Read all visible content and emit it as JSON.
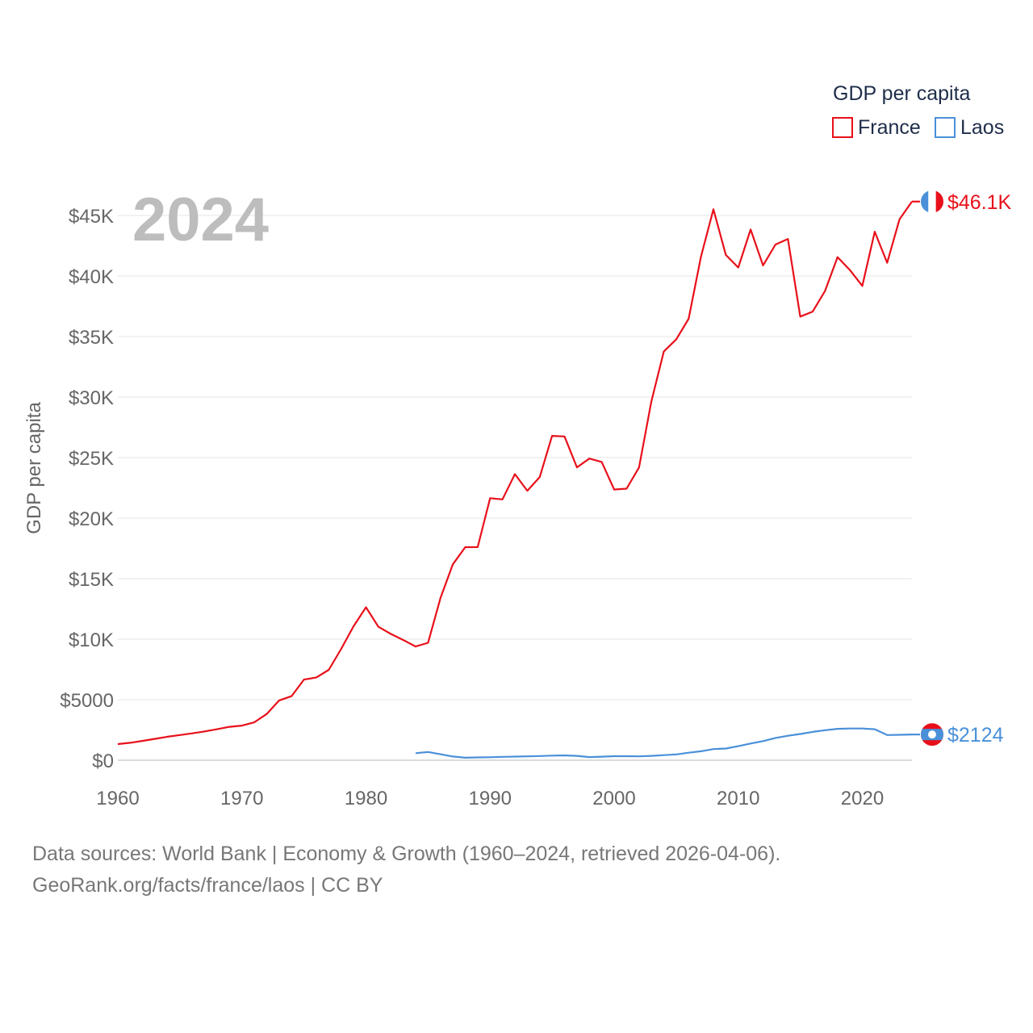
{
  "chart_data": {
    "type": "line",
    "title": "GDP per capita",
    "year_label": "2024",
    "ylabel": "GDP per capita",
    "xlabel": "",
    "xlim": [
      1960,
      2024
    ],
    "ylim": [
      0,
      45000
    ],
    "x_ticks": [
      1960,
      1970,
      1980,
      1990,
      2000,
      2010,
      2020
    ],
    "x_tick_labels": [
      "1960",
      "1970",
      "1980",
      "1990",
      "2000",
      "2010",
      "2020"
    ],
    "y_ticks": [
      0,
      5000,
      10000,
      15000,
      20000,
      25000,
      30000,
      35000,
      40000,
      45000
    ],
    "y_tick_labels": [
      "$0",
      "$5000",
      "$10K",
      "$15K",
      "$20K",
      "$25K",
      "$30K",
      "$35K",
      "$40K",
      "$45K"
    ],
    "grid": true,
    "legend": {
      "title": "GDP per capita",
      "position": "top-right"
    },
    "series": [
      {
        "name": "France",
        "color": "#e8101a",
        "end_label": "$46.1K",
        "flag_icon": "france-flag-icon",
        "x": [
          1960,
          1961,
          1962,
          1963,
          1964,
          1965,
          1966,
          1967,
          1968,
          1969,
          1970,
          1971,
          1972,
          1973,
          1974,
          1975,
          1976,
          1977,
          1978,
          1979,
          1980,
          1981,
          1982,
          1983,
          1984,
          1985,
          1986,
          1987,
          1988,
          1989,
          1990,
          1991,
          1992,
          1993,
          1994,
          1995,
          1996,
          1997,
          1998,
          1999,
          2000,
          2001,
          2002,
          2003,
          2004,
          2005,
          2006,
          2007,
          2008,
          2009,
          2010,
          2011,
          2012,
          2013,
          2014,
          2015,
          2016,
          2017,
          2018,
          2019,
          2020,
          2021,
          2022,
          2023,
          2024
        ],
        "values": [
          1330,
          1440,
          1600,
          1770,
          1940,
          2080,
          2220,
          2380,
          2560,
          2760,
          2860,
          3130,
          3820,
          4940,
          5290,
          6660,
          6840,
          7470,
          9200,
          11070,
          12630,
          11020,
          10430,
          9930,
          9390,
          9700,
          13400,
          16180,
          17600,
          17610,
          21650,
          21550,
          23630,
          22260,
          23390,
          26790,
          26750,
          24190,
          24920,
          24640,
          22360,
          22430,
          24180,
          29630,
          33760,
          34760,
          36470,
          41600,
          45510,
          41740,
          40700,
          43840,
          40870,
          42600,
          43060,
          36650,
          37060,
          38780,
          41560,
          40490,
          39180,
          43660,
          41090,
          44690,
          46150
        ]
      },
      {
        "name": "Laos",
        "color": "#4a90d9",
        "end_label": "$2124",
        "flag_icon": "laos-flag-icon",
        "x": [
          1984,
          1985,
          1986,
          1987,
          1988,
          1989,
          1990,
          1991,
          1992,
          1993,
          1994,
          1995,
          1996,
          1997,
          1998,
          1999,
          2000,
          2001,
          2002,
          2003,
          2004,
          2005,
          2006,
          2007,
          2008,
          2009,
          2010,
          2011,
          2012,
          2013,
          2014,
          2015,
          2016,
          2017,
          2018,
          2019,
          2020,
          2021,
          2022,
          2023,
          2024
        ],
        "values": [
          580,
          680,
          490,
          310,
          210,
          230,
          250,
          280,
          300,
          320,
          350,
          380,
          400,
          360,
          260,
          290,
          330,
          330,
          320,
          360,
          420,
          480,
          620,
          740,
          920,
          970,
          1160,
          1380,
          1580,
          1840,
          2020,
          2170,
          2340,
          2480,
          2590,
          2620,
          2620,
          2560,
          2080,
          2100,
          2124
        ]
      }
    ]
  },
  "source": {
    "line1": "Data sources: World Bank | Economy & Growth (1960–2024, retrieved 2026-04-06).",
    "line2": "GeoRank.org/facts/france/laos | CC BY"
  }
}
